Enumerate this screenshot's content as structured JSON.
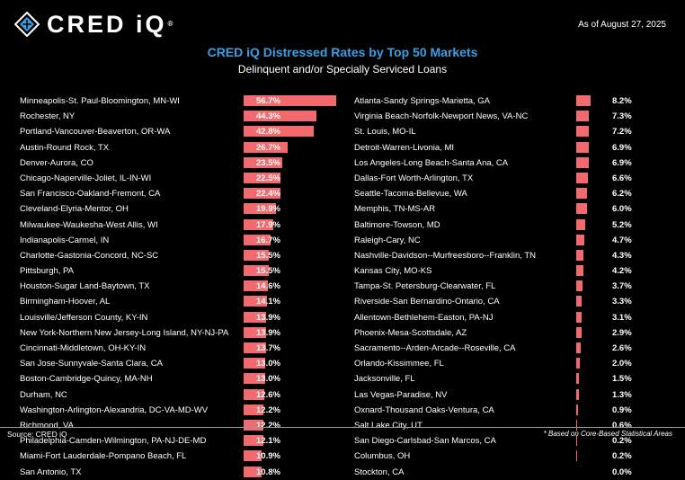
{
  "header": {
    "logo_text": "CRED iQ",
    "logo_mark": "®",
    "date": "As of August 27, 2025"
  },
  "title": "CRED iQ Distressed Rates by Top 50 Markets",
  "subtitle": "Delinquent and/or Specially Serviced Loans",
  "footer": {
    "source": "Source: CRED iQ",
    "note": "* Based on Core-Based Statistical Areas"
  },
  "colors": {
    "bar": "#f26a6d",
    "title": "#3aa0e6",
    "background": "#000000"
  },
  "chart_data": {
    "type": "bar",
    "orientation": "horizontal",
    "unit": "%",
    "xlim": [
      0,
      56.7
    ],
    "grid": false,
    "legend": "none",
    "left": [
      {
        "label": "Minneapolis-St. Paul-Bloomington, MN-WI",
        "value": 56.7,
        "display": "56.7%"
      },
      {
        "label": "Rochester, NY",
        "value": 44.3,
        "display": "44.3%"
      },
      {
        "label": "Portland-Vancouver-Beaverton, OR-WA",
        "value": 42.8,
        "display": "42.8%"
      },
      {
        "label": "Austin-Round Rock, TX",
        "value": 26.7,
        "display": "26.7%"
      },
      {
        "label": "Denver-Aurora, CO",
        "value": 23.5,
        "display": "23.5%"
      },
      {
        "label": "Chicago-Naperville-Joliet, IL-IN-WI",
        "value": 22.5,
        "display": "22.5%"
      },
      {
        "label": "San Francisco-Oakland-Fremont, CA",
        "value": 22.4,
        "display": "22.4%"
      },
      {
        "label": "Cleveland-Elyria-Mentor, OH",
        "value": 19.9,
        "display": "19.9%"
      },
      {
        "label": "Milwaukee-Waukesha-West Allis, WI",
        "value": 17.9,
        "display": "17.9%"
      },
      {
        "label": "Indianapolis-Carmel, IN",
        "value": 16.7,
        "display": "16.7%"
      },
      {
        "label": "Charlotte-Gastonia-Concord, NC-SC",
        "value": 15.5,
        "display": "15.5%"
      },
      {
        "label": "Pittsburgh, PA",
        "value": 15.5,
        "display": "15.5%"
      },
      {
        "label": "Houston-Sugar Land-Baytown, TX",
        "value": 14.6,
        "display": "14.6%"
      },
      {
        "label": "Birmingham-Hoover, AL",
        "value": 14.1,
        "display": "14.1%"
      },
      {
        "label": "Louisville/Jefferson County, KY-IN",
        "value": 13.9,
        "display": "13.9%"
      },
      {
        "label": "New York-Northern New Jersey-Long Island, NY-NJ-PA",
        "value": 13.9,
        "display": "13.9%"
      },
      {
        "label": "Cincinnati-Middletown, OH-KY-IN",
        "value": 13.7,
        "display": "13.7%"
      },
      {
        "label": "San Jose-Sunnyvale-Santa Clara, CA",
        "value": 13.0,
        "display": "13.0%"
      },
      {
        "label": "Boston-Cambridge-Quincy, MA-NH",
        "value": 13.0,
        "display": "13.0%"
      },
      {
        "label": "Durham, NC",
        "value": 12.6,
        "display": "12.6%"
      },
      {
        "label": "Washington-Arlington-Alexandria, DC-VA-MD-WV",
        "value": 12.2,
        "display": "12.2%"
      },
      {
        "label": "Richmond, VA",
        "value": 12.2,
        "display": "12.2%"
      },
      {
        "label": "Philadelphia-Camden-Wilmington, PA-NJ-DE-MD",
        "value": 12.1,
        "display": "12.1%"
      },
      {
        "label": "Miami-Fort Lauderdale-Pompano Beach, FL",
        "value": 10.9,
        "display": "10.9%"
      },
      {
        "label": "San Antonio, TX",
        "value": 10.8,
        "display": "10.8%"
      }
    ],
    "right": [
      {
        "label": "Atlanta-Sandy Springs-Marietta, GA",
        "value": 8.2,
        "display": "8.2%"
      },
      {
        "label": "Virginia Beach-Norfolk-Newport News, VA-NC",
        "value": 7.3,
        "display": "7.3%"
      },
      {
        "label": "St. Louis, MO-IL",
        "value": 7.2,
        "display": "7.2%"
      },
      {
        "label": "Detroit-Warren-Livonia, MI",
        "value": 6.9,
        "display": "6.9%"
      },
      {
        "label": "Los Angeles-Long Beach-Santa Ana, CA",
        "value": 6.9,
        "display": "6.9%"
      },
      {
        "label": "Dallas-Fort Worth-Arlington, TX",
        "value": 6.6,
        "display": "6.6%"
      },
      {
        "label": "Seattle-Tacoma-Bellevue, WA",
        "value": 6.2,
        "display": "6.2%"
      },
      {
        "label": "Memphis, TN-MS-AR",
        "value": 6.0,
        "display": "6.0%"
      },
      {
        "label": "Baltimore-Towson, MD",
        "value": 5.2,
        "display": "5.2%"
      },
      {
        "label": "Raleigh-Cary, NC",
        "value": 4.7,
        "display": "4.7%"
      },
      {
        "label": "Nashville-Davidson--Murfreesboro--Franklin, TN",
        "value": 4.3,
        "display": "4.3%"
      },
      {
        "label": "Kansas City, MO-KS",
        "value": 4.2,
        "display": "4.2%"
      },
      {
        "label": "Tampa-St. Petersburg-Clearwater, FL",
        "value": 3.7,
        "display": "3.7%"
      },
      {
        "label": "Riverside-San Bernardino-Ontario, CA",
        "value": 3.3,
        "display": "3.3%"
      },
      {
        "label": "Allentown-Bethlehem-Easton, PA-NJ",
        "value": 3.1,
        "display": "3.1%"
      },
      {
        "label": "Phoenix-Mesa-Scottsdale, AZ",
        "value": 2.9,
        "display": "2.9%"
      },
      {
        "label": "Sacramento--Arden-Arcade--Roseville, CA",
        "value": 2.6,
        "display": "2.6%"
      },
      {
        "label": "Orlando-Kissimmee, FL",
        "value": 2.0,
        "display": "2.0%"
      },
      {
        "label": "Jacksonville, FL",
        "value": 1.5,
        "display": "1.5%"
      },
      {
        "label": "Las Vegas-Paradise, NV",
        "value": 1.3,
        "display": "1.3%"
      },
      {
        "label": "Oxnard-Thousand Oaks-Ventura, CA",
        "value": 0.9,
        "display": "0.9%"
      },
      {
        "label": "Salt Lake City, UT",
        "value": 0.6,
        "display": "0.6%"
      },
      {
        "label": "San Diego-Carlsbad-San Marcos, CA",
        "value": 0.2,
        "display": "0.2%"
      },
      {
        "label": "Columbus, OH",
        "value": 0.2,
        "display": "0.2%"
      },
      {
        "label": "Stockton, CA",
        "value": 0.0,
        "display": "0.0%"
      }
    ]
  }
}
